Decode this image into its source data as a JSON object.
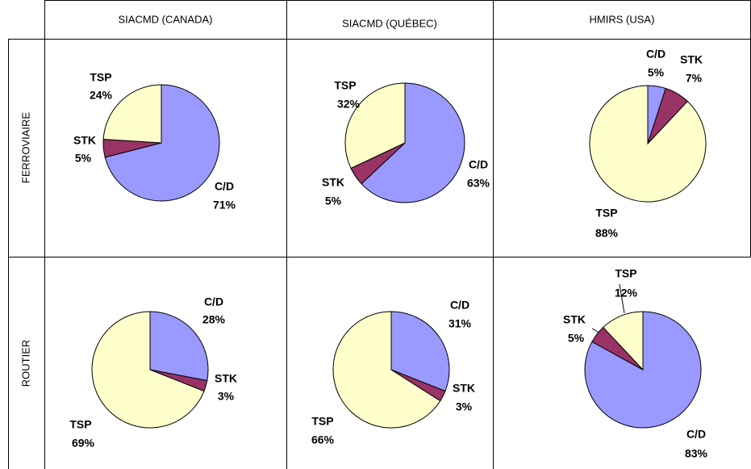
{
  "columns": [
    "SIACMD (CANADA)",
    "SIACMD (QUÉBEC)",
    "HMIRS (USA)"
  ],
  "rows": [
    "FERROVIAIRE",
    "ROUTIER"
  ],
  "chart_data": [
    {
      "type": "pie",
      "categories": [
        "C/D",
        "STK",
        "TSP"
      ],
      "values": [
        71,
        5,
        24
      ],
      "value_labels": [
        "71%",
        "5%",
        "24%"
      ],
      "colors": [
        "#9999ff",
        "#993366",
        "#ffffcc"
      ]
    },
    {
      "type": "pie",
      "categories": [
        "C/D",
        "STK",
        "TSP"
      ],
      "values": [
        63,
        5,
        32
      ],
      "value_labels": [
        "63%",
        "5%",
        "32%"
      ],
      "colors": [
        "#9999ff",
        "#993366",
        "#ffffcc"
      ]
    },
    {
      "type": "pie",
      "categories": [
        "C/D",
        "STK",
        "TSP"
      ],
      "values": [
        5,
        7,
        88
      ],
      "value_labels": [
        "5%",
        "7%",
        "88%"
      ],
      "colors": [
        "#9999ff",
        "#993366",
        "#ffffcc"
      ]
    },
    {
      "type": "pie",
      "categories": [
        "C/D",
        "STK",
        "TSP"
      ],
      "values": [
        28,
        3,
        69
      ],
      "value_labels": [
        "28%",
        "3%",
        "69%"
      ],
      "colors": [
        "#9999ff",
        "#993366",
        "#ffffcc"
      ]
    },
    {
      "type": "pie",
      "categories": [
        "C/D",
        "STK",
        "TSP"
      ],
      "values": [
        31,
        3,
        66
      ],
      "value_labels": [
        "31%",
        "3%",
        "66%"
      ],
      "colors": [
        "#9999ff",
        "#993366",
        "#ffffcc"
      ]
    },
    {
      "type": "pie",
      "categories": [
        "C/D",
        "STK",
        "TSP"
      ],
      "values": [
        83,
        5,
        12
      ],
      "value_labels": [
        "83%",
        "5%",
        "12%"
      ],
      "colors": [
        "#9999ff",
        "#993366",
        "#ffffcc"
      ]
    }
  ]
}
